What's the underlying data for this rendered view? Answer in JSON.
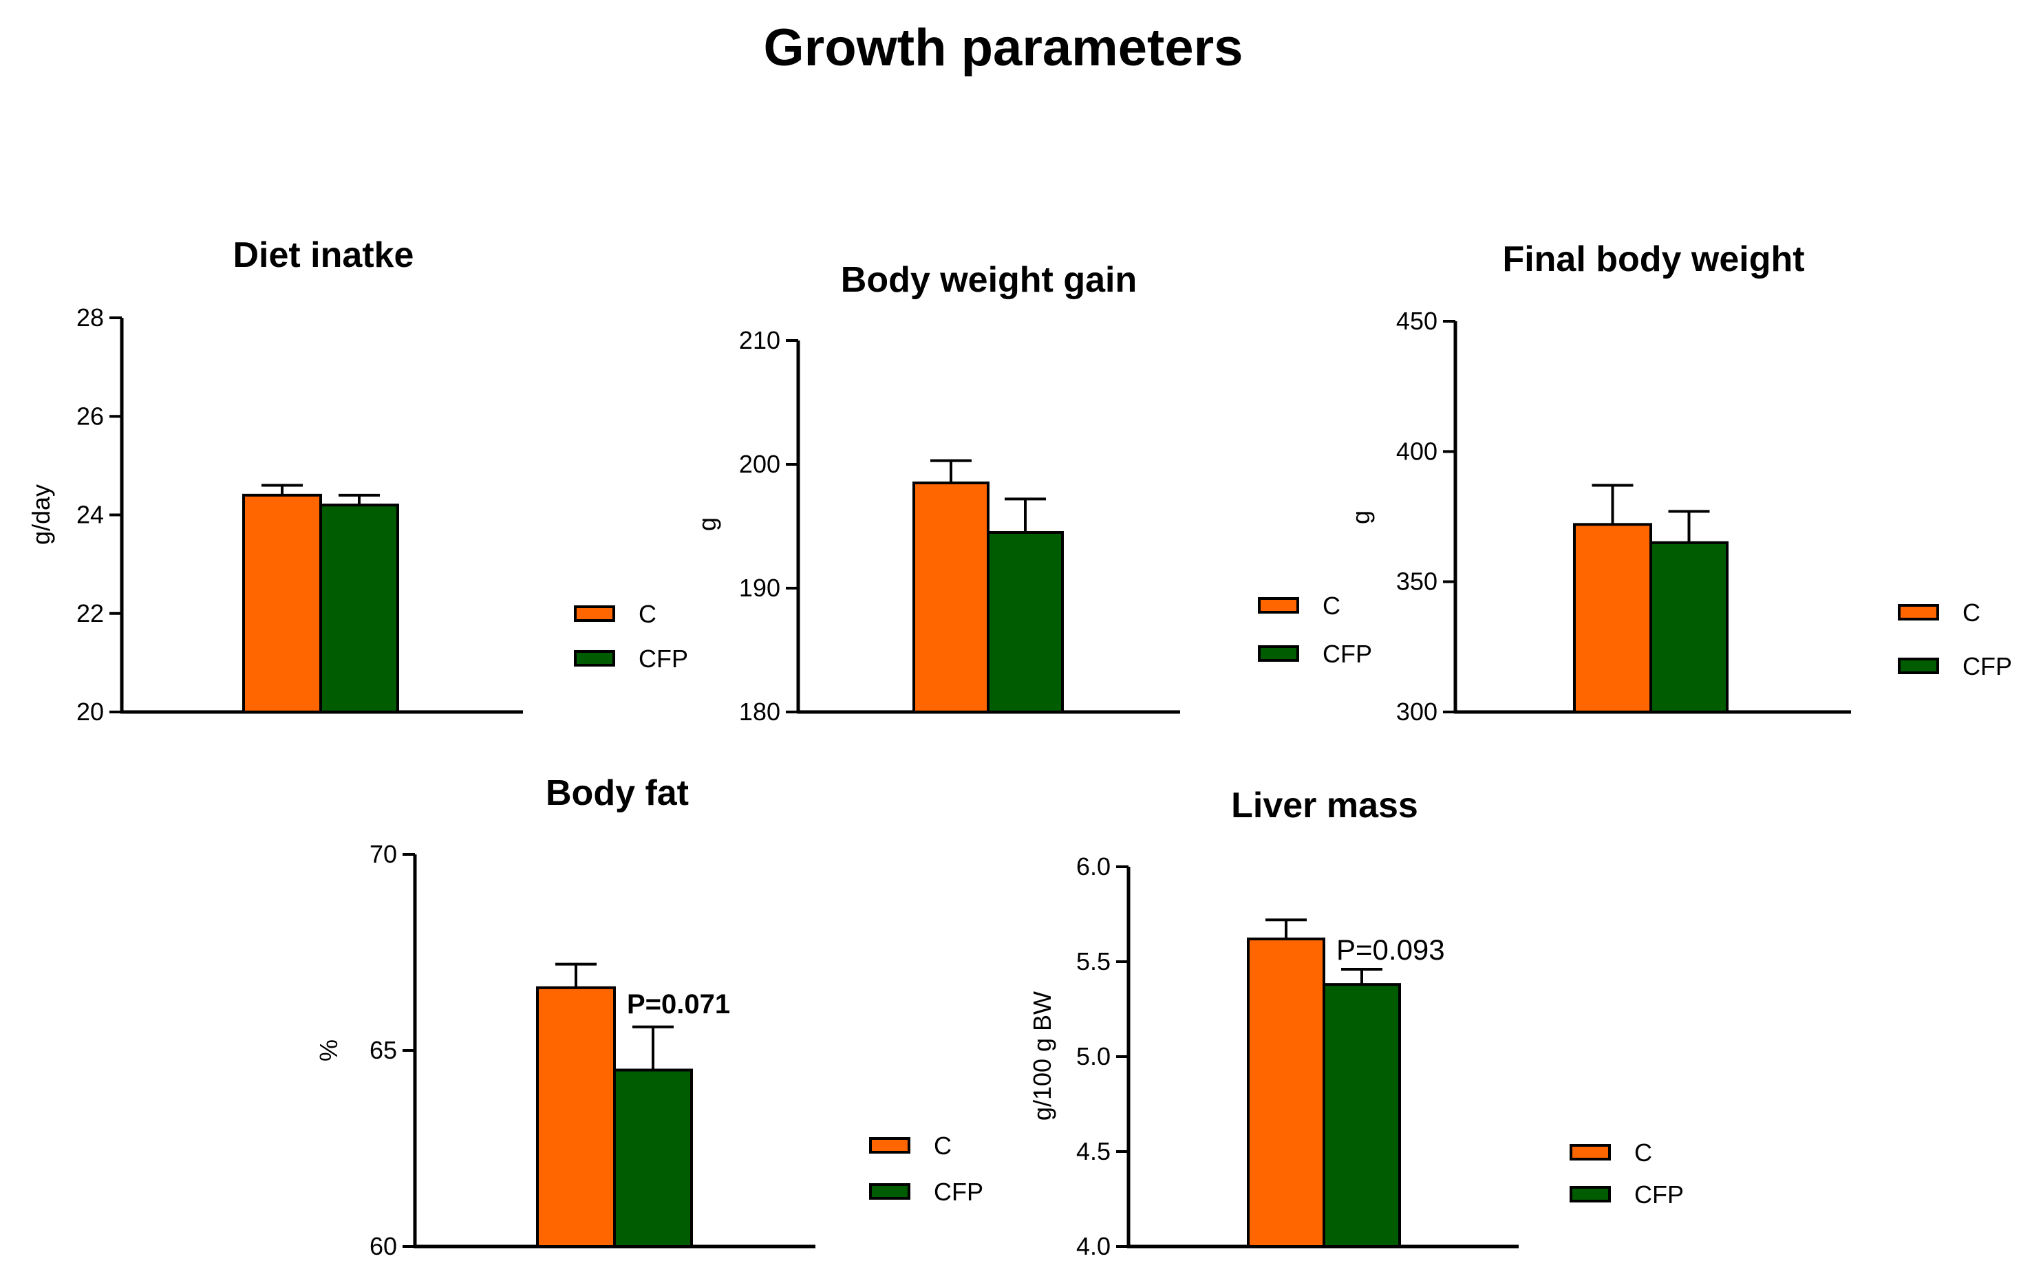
{
  "title": "Growth parameters",
  "colors": {
    "C": "#ff6600",
    "CFP": "#005c00",
    "axis": "#000000"
  },
  "legend": {
    "items": [
      {
        "label": "C",
        "color": "#ff6600"
      },
      {
        "label": "CFP",
        "color": "#005c00"
      }
    ]
  },
  "chart_data": [
    {
      "type": "bar",
      "title": "Diet inatke",
      "ylabel": "g/day",
      "ylim": [
        20,
        28
      ],
      "yticks": [
        "20",
        "22",
        "24",
        "26",
        "28"
      ],
      "series": [
        {
          "name": "C",
          "value": 24.4,
          "error": 0.2
        },
        {
          "name": "CFP",
          "value": 24.2,
          "error": 0.2
        }
      ],
      "annotation": ""
    },
    {
      "type": "bar",
      "title": "Body weight gain",
      "ylabel": "g",
      "ylim": [
        180,
        210
      ],
      "yticks": [
        "180",
        "190",
        "200",
        "210"
      ],
      "series": [
        {
          "name": "C",
          "value": 198.5,
          "error": 1.8
        },
        {
          "name": "CFP",
          "value": 194.5,
          "error": 2.7
        }
      ],
      "annotation": ""
    },
    {
      "type": "bar",
      "title": "Final body weight",
      "ylabel": "g",
      "ylim": [
        300,
        450
      ],
      "yticks": [
        "300",
        "350",
        "400",
        "450"
      ],
      "series": [
        {
          "name": "C",
          "value": 372,
          "error": 15
        },
        {
          "name": "CFP",
          "value": 365,
          "error": 12
        }
      ],
      "annotation": ""
    },
    {
      "type": "bar",
      "title": "Body  fat",
      "ylabel": "%",
      "ylim": [
        60,
        70
      ],
      "yticks": [
        "60",
        "65",
        "70"
      ],
      "series": [
        {
          "name": "C",
          "value": 66.6,
          "error": 0.6
        },
        {
          "name": "CFP",
          "value": 64.5,
          "error": 1.1
        }
      ],
      "annotation": "P=0.071",
      "annotation_style": "bold"
    },
    {
      "type": "bar",
      "title": "Liver mass",
      "ylabel": "g/100 g BW",
      "ylim": [
        4.0,
        6.0
      ],
      "yticks": [
        "4.0",
        "4.5",
        "5.0",
        "5.5",
        "6.0"
      ],
      "series": [
        {
          "name": "C",
          "value": 5.62,
          "error": 0.1
        },
        {
          "name": "CFP",
          "value": 5.38,
          "error": 0.08
        }
      ],
      "annotation": "P=0.093",
      "annotation_style": "normal"
    }
  ]
}
